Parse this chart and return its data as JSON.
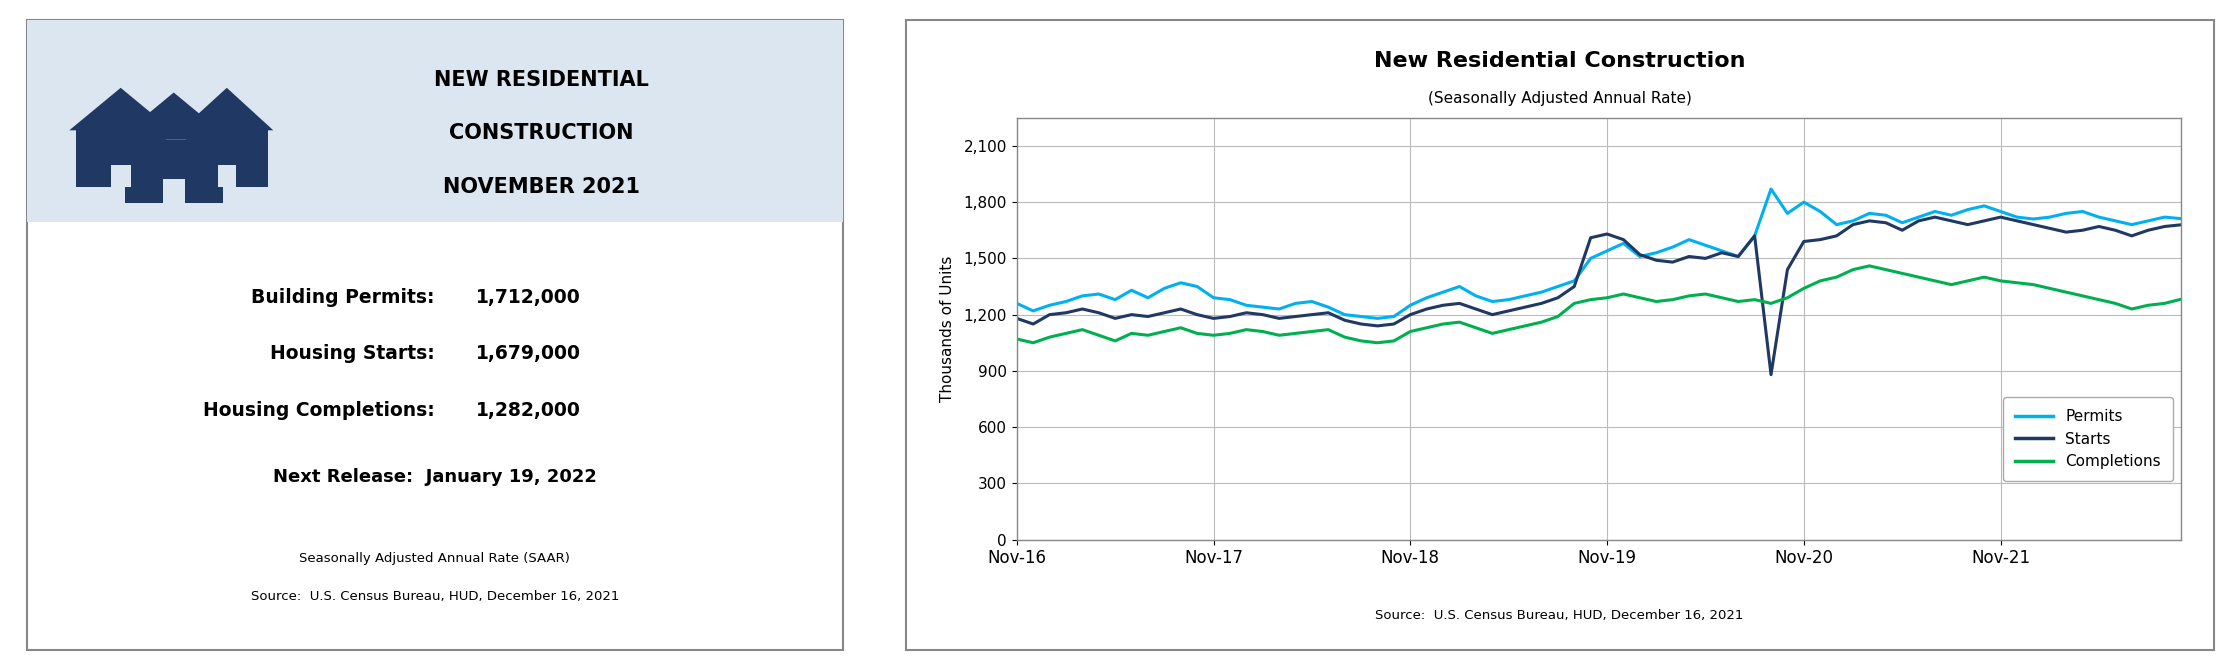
{
  "title_left_line1": "NEW RESIDENTIAL",
  "title_left_line2": "CONSTRUCTION",
  "title_left_line3": "NOVEMBER 2021",
  "header_bg": "#dce6f1",
  "stats": [
    {
      "label": "Building Permits:",
      "value": "1,712,000"
    },
    {
      "label": "Housing Starts:",
      "value": "1,679,000"
    },
    {
      "label": "Housing Completions:",
      "value": "1,282,000"
    }
  ],
  "next_release": "Next Release:  January 19, 2022",
  "footnote1": "Seasonally Adjusted Annual Rate (SAAR)",
  "footnote2": "Source:  U.S. Census Bureau, HUD, December 16, 2021",
  "chart_title": "New Residential Construction",
  "chart_subtitle": "(Seasonally Adjusted Annual Rate)",
  "chart_ylabel": "Thousands of Units",
  "chart_source": "Source:  U.S. Census Bureau, HUD, December 16, 2021",
  "yticks": [
    0,
    300,
    600,
    900,
    1200,
    1500,
    1800,
    2100
  ],
  "xtick_labels": [
    "Nov-16",
    "Nov-17",
    "Nov-18",
    "Nov-19",
    "Nov-20",
    "Nov-21"
  ],
  "permits_color": "#00b0f0",
  "starts_color": "#1f3864",
  "completions_color": "#00b050",
  "permits": [
    1260,
    1220,
    1250,
    1270,
    1300,
    1310,
    1280,
    1330,
    1290,
    1340,
    1370,
    1350,
    1290,
    1280,
    1250,
    1240,
    1230,
    1260,
    1270,
    1240,
    1200,
    1190,
    1180,
    1190,
    1250,
    1290,
    1320,
    1350,
    1300,
    1270,
    1280,
    1300,
    1320,
    1350,
    1380,
    1500,
    1540,
    1580,
    1510,
    1530,
    1560,
    1600,
    1570,
    1540,
    1510,
    1620,
    1870,
    1740,
    1800,
    1750,
    1680,
    1700,
    1740,
    1730,
    1690,
    1720,
    1750,
    1730,
    1760,
    1780,
    1750,
    1720,
    1710,
    1720,
    1740,
    1750,
    1720,
    1700,
    1680,
    1700,
    1720,
    1712
  ],
  "starts": [
    1180,
    1150,
    1200,
    1210,
    1230,
    1210,
    1180,
    1200,
    1190,
    1210,
    1230,
    1200,
    1180,
    1190,
    1210,
    1200,
    1180,
    1190,
    1200,
    1210,
    1170,
    1150,
    1140,
    1150,
    1200,
    1230,
    1250,
    1260,
    1230,
    1200,
    1220,
    1240,
    1260,
    1290,
    1350,
    1610,
    1630,
    1600,
    1520,
    1490,
    1480,
    1510,
    1500,
    1530,
    1510,
    1620,
    880,
    1440,
    1590,
    1600,
    1620,
    1680,
    1700,
    1690,
    1650,
    1700,
    1720,
    1700,
    1680,
    1700,
    1720,
    1700,
    1680,
    1660,
    1640,
    1650,
    1670,
    1650,
    1620,
    1650,
    1670,
    1679
  ],
  "completions": [
    1070,
    1050,
    1080,
    1100,
    1120,
    1090,
    1060,
    1100,
    1090,
    1110,
    1130,
    1100,
    1090,
    1100,
    1120,
    1110,
    1090,
    1100,
    1110,
    1120,
    1080,
    1060,
    1050,
    1060,
    1110,
    1130,
    1150,
    1160,
    1130,
    1100,
    1120,
    1140,
    1160,
    1190,
    1260,
    1280,
    1290,
    1310,
    1290,
    1270,
    1280,
    1300,
    1310,
    1290,
    1270,
    1280,
    1260,
    1290,
    1340,
    1380,
    1400,
    1440,
    1460,
    1440,
    1420,
    1400,
    1380,
    1360,
    1380,
    1400,
    1380,
    1370,
    1360,
    1340,
    1320,
    1300,
    1280,
    1260,
    1230,
    1250,
    1260,
    1282
  ],
  "panel_border_color": "#888888",
  "house_color": "#1f3864"
}
